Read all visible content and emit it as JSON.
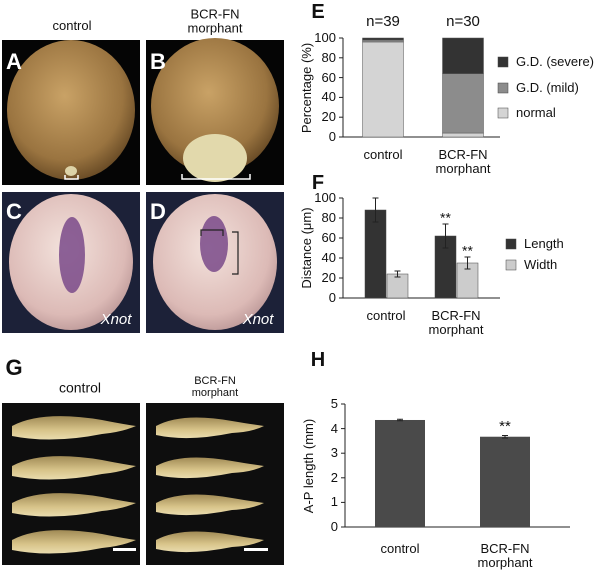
{
  "panels": [
    {
      "letter": "A",
      "label": "control"
    },
    {
      "letter": "B",
      "label": "BCR-FN morphant"
    },
    {
      "letter": "C",
      "caption": "Xnot"
    },
    {
      "letter": "D",
      "caption": "Xnot"
    },
    {
      "letter": "G",
      "labels": [
        "control",
        "BCR-FN morphant"
      ]
    }
  ],
  "chart_data": [
    {
      "type": "stacked_bar",
      "panel": "E",
      "y_label": "Percentage (%)",
      "categories": [
        "control",
        "BCR-FN morphant"
      ],
      "series": [
        {
          "name": "normal",
          "color": "#d4d4d4",
          "values": [
            96,
            4
          ]
        },
        {
          "name": "G.D. (mild)",
          "color": "#8c8c8c",
          "values": [
            2,
            60
          ]
        },
        {
          "name": "G.D. (severe)",
          "color": "#333333",
          "values": [
            2,
            36
          ]
        }
      ],
      "annotations": [
        {
          "text": "n=39",
          "category": "control"
        },
        {
          "text": "n=30",
          "category": "BCR-FN morphant"
        }
      ],
      "ylim": [
        0,
        100
      ],
      "yticks": [
        0,
        20,
        40,
        60,
        80,
        100
      ]
    },
    {
      "type": "grouped_bar",
      "panel": "F",
      "y_label": "Distance (μm)",
      "categories": [
        "control",
        "BCR-FN morphant"
      ],
      "series": [
        {
          "name": "Length",
          "color": "#333333",
          "values": [
            88,
            62
          ],
          "errors": [
            12,
            12
          ]
        },
        {
          "name": "Width",
          "color": "#cccccc",
          "values": [
            24,
            35
          ],
          "errors": [
            3,
            6
          ]
        }
      ],
      "annotations": [
        {
          "text": "**",
          "category": "BCR-FN morphant",
          "series": "Length"
        },
        {
          "text": "**",
          "category": "BCR-FN morphant",
          "series": "Width"
        }
      ],
      "ylim": [
        0,
        100
      ],
      "yticks": [
        0,
        20,
        40,
        60,
        80,
        100
      ]
    },
    {
      "type": "bar",
      "panel": "H",
      "y_label": "A-P length (mm)",
      "categories": [
        "control",
        "BCR-FN morphant"
      ],
      "values": [
        4.35,
        3.67
      ],
      "errors": [
        0.03,
        0.05
      ],
      "color": "#4a4a4a",
      "annotations": [
        {
          "text": "**",
          "category": "BCR-FN morphant"
        }
      ],
      "ylim": [
        0,
        5
      ],
      "yticks": [
        0,
        1,
        2,
        3,
        4,
        5
      ]
    }
  ]
}
